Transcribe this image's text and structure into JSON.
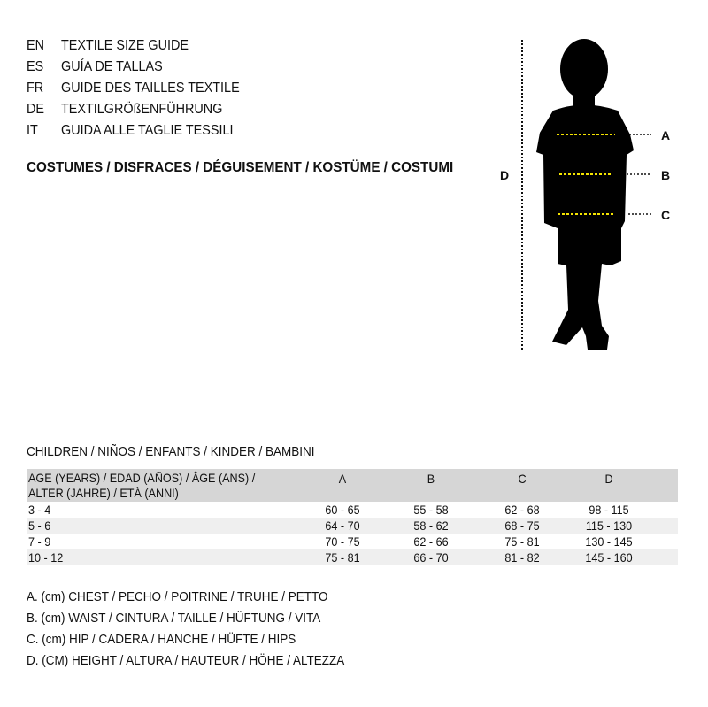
{
  "header": {
    "languages": [
      {
        "code": "EN",
        "text": "TEXTILE SIZE GUIDE"
      },
      {
        "code": "ES",
        "text": "GUÍA DE TALLAS"
      },
      {
        "code": "FR",
        "text": "GUIDE DES TAILLES TEXTILE"
      },
      {
        "code": "DE",
        "text": "TEXTILGRÖßENFÜHRUNG"
      },
      {
        "code": "IT",
        "text": "GUIDA ALLE TAGLIE TESSILI"
      }
    ],
    "category": "COSTUMES / DISFRACES / DÉGUISEMENT / KOSTÜME / COSTUMI"
  },
  "figure": {
    "labels": {
      "a": "A",
      "b": "B",
      "c": "C",
      "d": "D"
    },
    "measure_line_color": "#f5e400"
  },
  "table": {
    "title": "CHILDREN / NIÑOS / ENFANTS / KINDER / BAMBINI",
    "age_header_line1": "AGE (YEARS) / EDAD (AÑOS) / ÂGE (ANS) /",
    "age_header_line2": "ALTER (JAHRE) / ETÀ (ANNI)",
    "columns": [
      "A",
      "B",
      "C",
      "D"
    ],
    "rows": [
      [
        "3 - 4",
        "60 - 65",
        "55 - 58",
        "62 - 68",
        "98 - 115"
      ],
      [
        "5 - 6",
        "64 - 70",
        "58 - 62",
        "68 - 75",
        "115 - 130"
      ],
      [
        "7 - 9",
        "70 - 75",
        "62 - 66",
        "75 - 81",
        "130 - 145"
      ],
      [
        "10 - 12",
        "75 - 81",
        "66 - 70",
        "81 - 82",
        "145 - 160"
      ]
    ]
  },
  "legend": [
    "A. (cm) CHEST / PECHO / POITRINE / TRUHE / PETTO",
    "B. (cm) WAIST / CINTURA / TAILLE / HÜFTUNG / VITA",
    "C. (cm) HIP / CADERA / HANCHE / HÜFTE / HIPS",
    "D. (CM) HEIGHT / ALTURA / HAUTEUR / HÖHE / ALTEZZA"
  ]
}
